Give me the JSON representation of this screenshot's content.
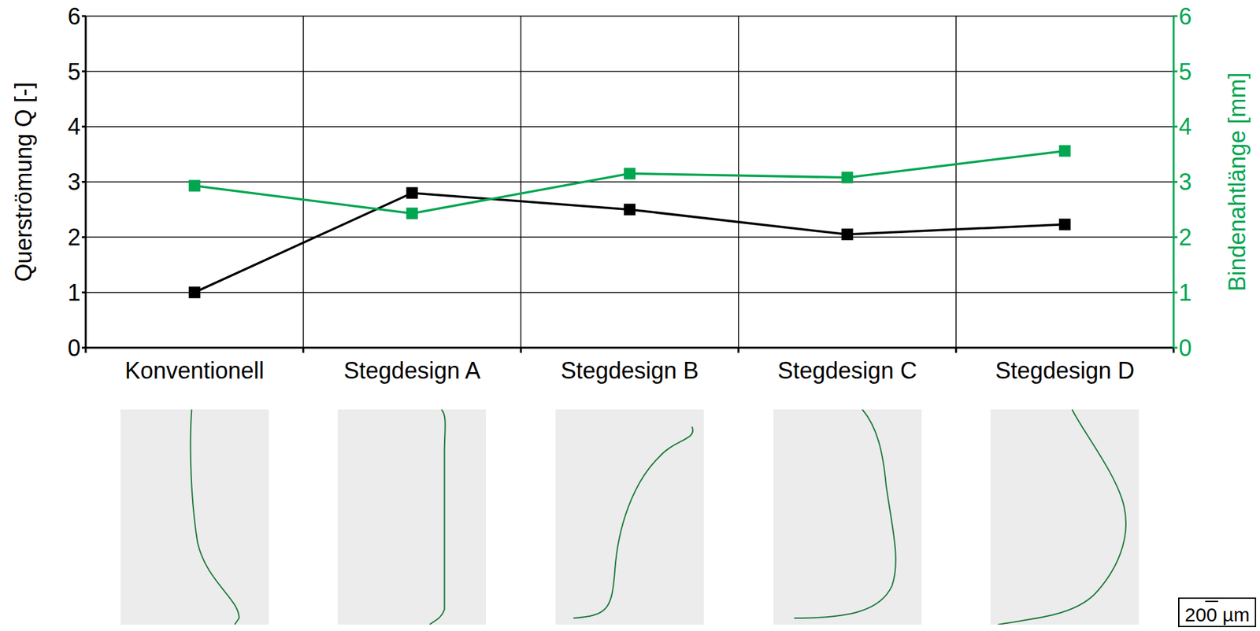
{
  "chart_data": {
    "type": "line",
    "categories": [
      "Konventionell",
      "Stegdesign A",
      "Stegdesign B",
      "Stegdesign C",
      "Stegdesign D"
    ],
    "series": [
      {
        "name": "Querströmung Q",
        "color": "#000000",
        "marker": "square",
        "values": [
          1.0,
          2.8,
          2.5,
          2.05,
          2.23
        ]
      },
      {
        "name": "Bindenahtlänge",
        "color": "#00a650",
        "marker": "square",
        "axis": "y2",
        "values": [
          2.93,
          2.43,
          3.15,
          3.08,
          3.56
        ]
      }
    ],
    "y_label": "Querströmung Q [-]",
    "y2_label": "Bindenahtlänge [mm]",
    "ylim": [
      0,
      6
    ],
    "yticks": [
      0,
      1,
      2,
      3,
      4,
      5,
      6
    ],
    "y2lim": [
      0,
      6
    ],
    "y2ticks": [
      0,
      1,
      2,
      3,
      4,
      5,
      6
    ],
    "grid": true
  },
  "scale_bar": "200 µm"
}
